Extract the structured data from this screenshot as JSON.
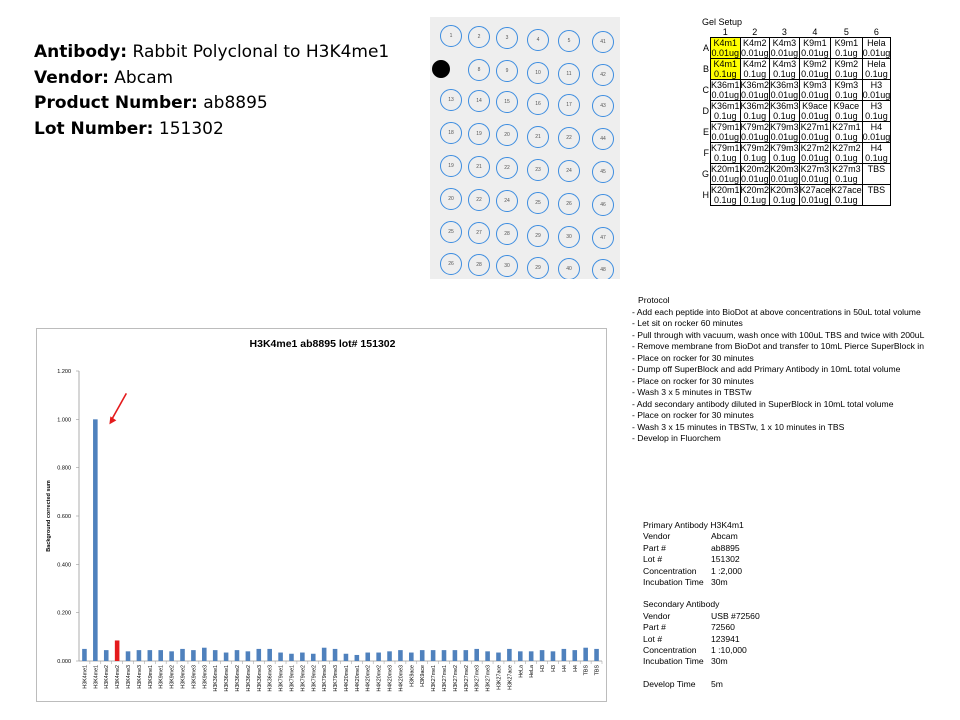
{
  "header": {
    "antibody_key": "Antibody:",
    "antibody": "Rabbit Polyclonal to H3K4me1",
    "vendor_key": "Vendor:",
    "vendor": "Abcam",
    "product_key": "Product Number:",
    "product": "ab8895",
    "lot_key": "Lot Number:",
    "lot": "151302"
  },
  "blot": {
    "dots": [
      [
        "1",
        "2",
        "3",
        "4",
        "5",
        "41"
      ],
      [
        "7",
        "8",
        "9",
        "10",
        "11",
        "42"
      ],
      [
        "13",
        "14",
        "15",
        "16",
        "17",
        "43"
      ],
      [
        "18",
        "19",
        "20",
        "21",
        "22",
        "44"
      ],
      [
        "19",
        "21",
        "22",
        "23",
        "24",
        "45"
      ],
      [
        "20",
        "22",
        "24",
        "25",
        "26",
        "46"
      ],
      [
        "25",
        "27",
        "28",
        "29",
        "30",
        "47"
      ],
      [
        "26",
        "28",
        "30",
        "29",
        "40",
        "48"
      ]
    ],
    "hit": [
      1,
      0
    ]
  },
  "gel": {
    "title": "Gel Setup",
    "columns": [
      "1",
      "2",
      "3",
      "4",
      "5",
      "6"
    ],
    "rows": [
      {
        "label": "A",
        "cells": [
          [
            "K4m1",
            "0.01ug"
          ],
          [
            "K4m2",
            "0.01ug"
          ],
          [
            "K4m3",
            "0.01ug"
          ],
          [
            "K9m1",
            "0.01ug"
          ],
          [
            "K9m1",
            "0.1ug"
          ],
          [
            "Hela",
            "0.01ug"
          ]
        ]
      },
      {
        "label": "B",
        "cells": [
          [
            "K4m1",
            "0.1ug"
          ],
          [
            "K4m2",
            "0.1ug"
          ],
          [
            "K4m3",
            "0.1ug"
          ],
          [
            "K9m2",
            "0.01ug"
          ],
          [
            "K9m2",
            "0.1ug"
          ],
          [
            "Hela",
            "0.1ug"
          ]
        ]
      },
      {
        "label": "C",
        "cells": [
          [
            "K36m1",
            "0.01ug"
          ],
          [
            "K36m2",
            "0.01ug"
          ],
          [
            "K36m3",
            "0.01ug"
          ],
          [
            "K9m3",
            "0.01ug"
          ],
          [
            "K9m3",
            "0.1ug"
          ],
          [
            "H3",
            "0.01ug"
          ]
        ]
      },
      {
        "label": "D",
        "cells": [
          [
            "K36m1",
            "0.1ug"
          ],
          [
            "K36m2",
            "0.1ug"
          ],
          [
            "K36m3",
            "0.1ug"
          ],
          [
            "K9ace",
            "0.01ug"
          ],
          [
            "K9ace",
            "0.1ug"
          ],
          [
            "H3",
            "0.1ug"
          ]
        ]
      },
      {
        "label": "E",
        "cells": [
          [
            "K79m1",
            "0.01ug"
          ],
          [
            "K79m2",
            "0.01ug"
          ],
          [
            "K79m3",
            "0.01ug"
          ],
          [
            "K27m1",
            "0.01ug"
          ],
          [
            "K27m1",
            "0.1ug"
          ],
          [
            "H4",
            "0.01ug"
          ]
        ]
      },
      {
        "label": "F",
        "cells": [
          [
            "K79m1",
            "0.1ug"
          ],
          [
            "K79m2",
            "0.1ug"
          ],
          [
            "K79m3",
            "0.1ug"
          ],
          [
            "K27m2",
            "0.01ug"
          ],
          [
            "K27m2",
            "0.1ug"
          ],
          [
            "H4",
            "0.1ug"
          ]
        ]
      },
      {
        "label": "G",
        "cells": [
          [
            "K20m1",
            "0.01ug"
          ],
          [
            "K20m2",
            "0.01ug"
          ],
          [
            "K20m3",
            "0.01ug"
          ],
          [
            "K27m3",
            "0.01ug"
          ],
          [
            "K27m3",
            "0.1ug"
          ],
          [
            "TBS",
            ""
          ]
        ]
      },
      {
        "label": "H",
        "cells": [
          [
            "K20m1",
            "0.1ug"
          ],
          [
            "K20m2",
            "0.1ug"
          ],
          [
            "K20m3",
            "0.1ug"
          ],
          [
            "K27ace",
            "0.01ug"
          ],
          [
            "K27ace",
            "0.1ug"
          ],
          [
            "TBS",
            ""
          ]
        ]
      }
    ],
    "highlight": [
      [
        0,
        0
      ],
      [
        1,
        0
      ]
    ]
  },
  "protocol": {
    "title": "Protocol",
    "steps": [
      "Add each peptide into BioDot at above concentrations in 50uL total volume",
      "Let sit on rocker 60 minutes",
      "Pull through with vacuum, wash once with 100uL TBS and twice with 200uL",
      "Remove membrane from BioDot and transfer to 10mL Pierce SuperBlock in",
      "Place on rocker for 30 minutes",
      "Dump off SuperBlock and add Primary Antibody in 10mL total volume",
      "Place on rocker for 30 minutes",
      "Wash 3 x 5 minutes in TBSTw",
      "Add secondary antibody diluted in SuperBlock in 10mL total volume",
      "Place on rocker for 30 minutes",
      "Wash 3 x 15 minutes in TBSTw, 1 x 10 minutes in TBS",
      "Develop in Fluorchem"
    ]
  },
  "primary": {
    "title": "Primary Antibody  H3K4m1",
    "rows": [
      [
        "Vendor",
        "Abcam"
      ],
      [
        "Part #",
        "ab8895"
      ],
      [
        "Lot #",
        "151302"
      ],
      [
        "Concentration",
        "  1 :2,000"
      ],
      [
        "Incubation Time",
        "30m"
      ]
    ]
  },
  "secondary": {
    "title": "Secondary Antibody",
    "rows": [
      [
        "Vendor",
        "USB #72560"
      ],
      [
        "Part #",
        "72560"
      ],
      [
        "Lot #",
        "123941"
      ],
      [
        "Concentration",
        "  1 :10,000"
      ],
      [
        "Incubation Time",
        "30m"
      ]
    ]
  },
  "develop": {
    "label": "Develop Time",
    "value": "5m"
  },
  "chart_data": {
    "type": "bar",
    "title": "H3K4me1 ab8895 lot# 151302",
    "ylabel": "Background corrected sum",
    "xlabel": "",
    "ylim": [
      0,
      1.2
    ],
    "yticks": [
      "0.000",
      "0.200",
      "0.400",
      "0.600",
      "0.800",
      "1.000",
      "1.200"
    ],
    "grid": false,
    "bar_color": "#4f81bd",
    "highlight_color": "#e41a1c",
    "arrow_color": "#e41a1c",
    "highlight_index": 3,
    "arrow_target_index": 1,
    "categories": [
      "H3K4me1",
      "H3K4me1",
      "H3K4me2",
      "H3K4me2",
      "H3K4me3",
      "H3K4me3",
      "H3K9me1",
      "H3K9me1",
      "H3K9me2",
      "H3K9me2",
      "H3K9me3",
      "H3K9me3",
      "H3K36me1",
      "H3K36me1",
      "H3K36me2",
      "H3K36me2",
      "H3K36me3",
      "H3K36me3",
      "H3K79me1",
      "H3K79me1",
      "H3K79me2",
      "H3K79me2",
      "H3K79me3",
      "H3K79me3",
      "H4K20me1",
      "H4K20me1",
      "H4K20me2",
      "H4K20me2",
      "H4K20me3",
      "H4K20me3",
      "H3K9ace",
      "H3K9ace",
      "H3K27me1",
      "H3K27me1",
      "H3K27me2",
      "H3K27me2",
      "H3K27me3",
      "H3K27me3",
      "H3K27ace",
      "H3K27ace",
      "HeLa",
      "HeLa",
      "H3",
      "H3",
      "H4",
      "H4",
      "TBS",
      "TBS"
    ],
    "values": [
      0.05,
      1.0,
      0.045,
      0.085,
      0.04,
      0.045,
      0.045,
      0.045,
      0.04,
      0.05,
      0.045,
      0.055,
      0.045,
      0.035,
      0.045,
      0.04,
      0.05,
      0.05,
      0.035,
      0.03,
      0.035,
      0.03,
      0.055,
      0.05,
      0.03,
      0.025,
      0.035,
      0.035,
      0.04,
      0.045,
      0.035,
      0.045,
      0.045,
      0.045,
      0.045,
      0.045,
      0.05,
      0.04,
      0.035,
      0.05,
      0.04,
      0.04,
      0.045,
      0.04,
      0.05,
      0.045,
      0.055,
      0.05
    ]
  }
}
